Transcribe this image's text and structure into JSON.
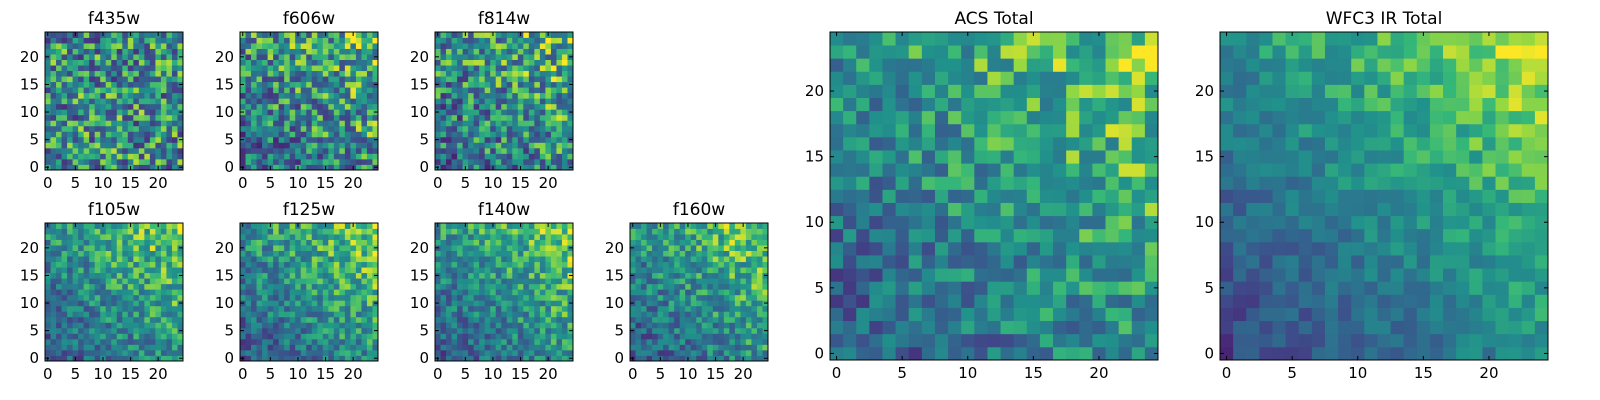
{
  "chart_data": [
    {
      "type": "heatmap",
      "title": "f435w",
      "x_ticks": [
        0,
        5,
        10,
        15,
        20
      ],
      "y_ticks": [
        0,
        5,
        10,
        15,
        20
      ],
      "grid_size": 25,
      "colormap": "viridis",
      "pattern": "noisy-uniform",
      "seed": 11
    },
    {
      "type": "heatmap",
      "title": "f606w",
      "x_ticks": [
        0,
        5,
        10,
        15,
        20
      ],
      "y_ticks": [
        0,
        5,
        10,
        15,
        20
      ],
      "grid_size": 25,
      "colormap": "viridis",
      "pattern": "noisy-brighter-top-right",
      "seed": 23
    },
    {
      "type": "heatmap",
      "title": "f814w",
      "x_ticks": [
        0,
        5,
        10,
        15,
        20
      ],
      "y_ticks": [
        0,
        5,
        10,
        15,
        20
      ],
      "grid_size": 25,
      "colormap": "viridis",
      "pattern": "noisy-brighter-top-right",
      "seed": 37
    },
    {
      "type": "heatmap",
      "title": "f105w",
      "x_ticks": [
        0,
        5,
        10,
        15,
        20
      ],
      "y_ticks": [
        0,
        5,
        10,
        15,
        20
      ],
      "grid_size": 25,
      "colormap": "viridis",
      "pattern": "gradient-brighter-top-right",
      "seed": 41
    },
    {
      "type": "heatmap",
      "title": "f125w",
      "x_ticks": [
        0,
        5,
        10,
        15,
        20
      ],
      "y_ticks": [
        0,
        5,
        10,
        15,
        20
      ],
      "grid_size": 25,
      "colormap": "viridis",
      "pattern": "gradient-brighter-top-right",
      "seed": 53
    },
    {
      "type": "heatmap",
      "title": "f140w",
      "x_ticks": [
        0,
        5,
        10,
        15,
        20
      ],
      "y_ticks": [
        0,
        5,
        10,
        15,
        20
      ],
      "grid_size": 25,
      "colormap": "viridis",
      "pattern": "gradient-brighter-top-right",
      "seed": 67
    },
    {
      "type": "heatmap",
      "title": "f160w",
      "x_ticks": [
        0,
        5,
        10,
        15,
        20
      ],
      "y_ticks": [
        0,
        5,
        10,
        15,
        20
      ],
      "grid_size": 25,
      "colormap": "viridis",
      "pattern": "gradient-brighter-top-right",
      "seed": 79
    },
    {
      "type": "heatmap",
      "title": "ACS Total",
      "x_ticks": [
        0,
        5,
        10,
        15,
        20
      ],
      "y_ticks": [
        0,
        5,
        10,
        15,
        20
      ],
      "grid_size": 25,
      "colormap": "viridis",
      "pattern": "gradient-brighter-top-right",
      "seed": 83
    },
    {
      "type": "heatmap",
      "title": "WFC3 IR Total",
      "x_ticks": [
        0,
        5,
        10,
        15,
        20
      ],
      "y_ticks": [
        0,
        5,
        10,
        15,
        20
      ],
      "grid_size": 25,
      "colormap": "viridis",
      "pattern": "smooth-gradient-brighter-top-right",
      "seed": 97
    }
  ]
}
